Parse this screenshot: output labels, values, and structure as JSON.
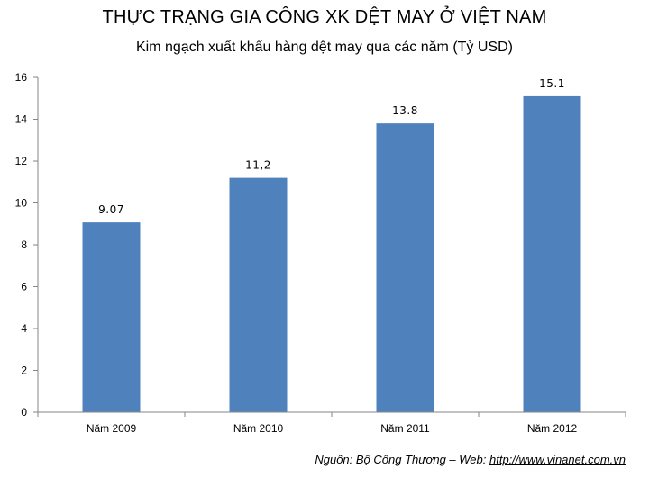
{
  "header": {
    "title": "THỰC TRẠNG GIA CÔNG  XK DỆT MAY Ở VIỆT NAM",
    "subtitle": "Kim ngạch xuất khẩu hàng dệt may qua các năm (Tỷ USD)"
  },
  "chart_data": {
    "type": "bar",
    "title": "THỰC TRẠNG GIA CÔNG  XK DỆT MAY Ở VIỆT NAM",
    "subtitle": "Kim ngạch xuất khẩu hàng dệt may qua các năm (Tỷ USD)",
    "categories": [
      "Năm 2009",
      "Năm 2010",
      "Năm 2011",
      "Năm 2012"
    ],
    "values": [
      9.07,
      11.2,
      13.8,
      15.1
    ],
    "data_labels": [
      "9.07",
      "11,2",
      "13.8",
      "15.1"
    ],
    "xlabel": "",
    "ylabel": "",
    "ylim": [
      0,
      16
    ],
    "yticks": [
      0,
      2,
      4,
      6,
      8,
      10,
      12,
      14,
      16
    ],
    "grid": false,
    "legend": "none",
    "bar_color": "#4f81bd"
  },
  "footer": {
    "source_prefix": "Nguồn: Bộ Công Thương – Web: ",
    "source_link": "http://www.vinanet.com.vn"
  }
}
